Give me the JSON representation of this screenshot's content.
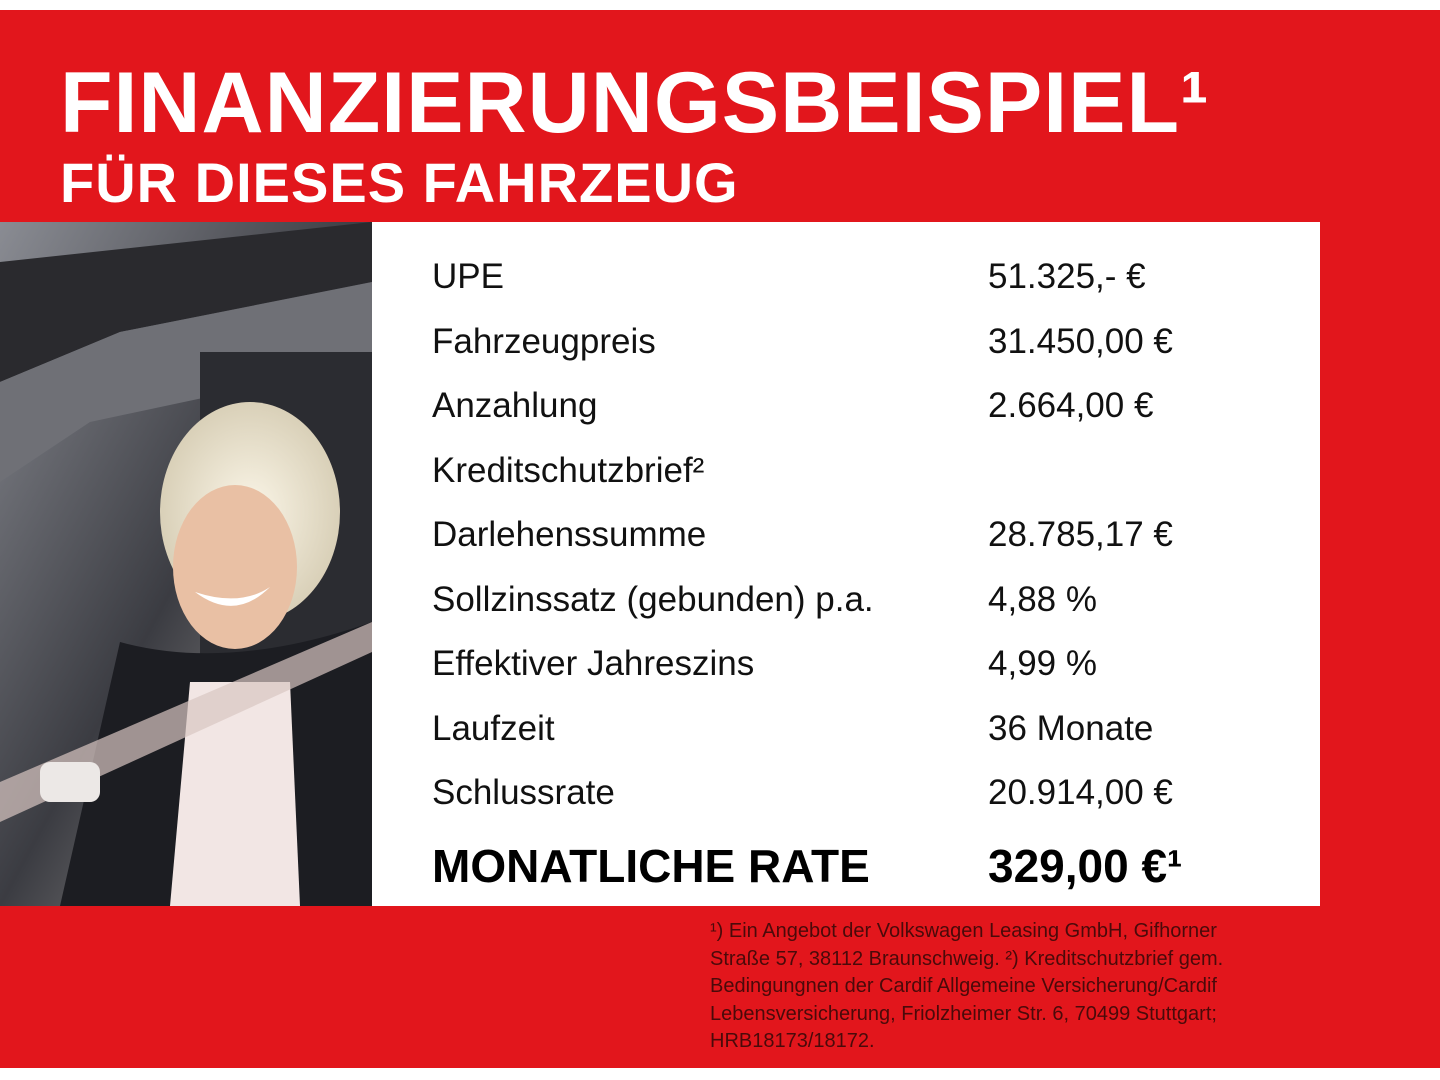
{
  "header": {
    "title": "FINANZIERUNGSBEISPIEL¹",
    "subtitle": "FÜR DIESES FAHRZEUG"
  },
  "table": {
    "rows": [
      {
        "label": "UPE",
        "value": "51.325,- €"
      },
      {
        "label": "Fahrzeugpreis",
        "value": "31.450,00 €"
      },
      {
        "label": "Anzahlung",
        "value": "2.664,00 €"
      },
      {
        "label": "Kreditschutzbrief²"
      },
      {
        "label": "Darlehenssumme",
        "value": "28.785,17 €"
      },
      {
        "label": "Sollzinssatz (gebunden) p.a.",
        "value": "4,88 %"
      },
      {
        "label": "Effektiver Jahreszins",
        "value": "4,99 %"
      },
      {
        "label": "Laufzeit",
        "value": "36 Monate"
      },
      {
        "label": "Schlussrate",
        "value": "20.914,00 €"
      }
    ],
    "summary": {
      "label": "MONATLICHE RATE",
      "value": "329,00 €¹"
    }
  },
  "footnote": {
    "lines": [
      "¹) Ein Angebot der Volkswagen Leasing GmbH, Gifhorner",
      "Straße 57, 38112 Braunschweig. ²) Kreditschutzbrief gem.",
      "Bedingungnen der Cardif Allgemeine Versicherung/Cardif",
      "Lebensversicherung, Friolzheimer Str. 6, 70499 Stuttgart;",
      "HRB18173/18172."
    ]
  }
}
